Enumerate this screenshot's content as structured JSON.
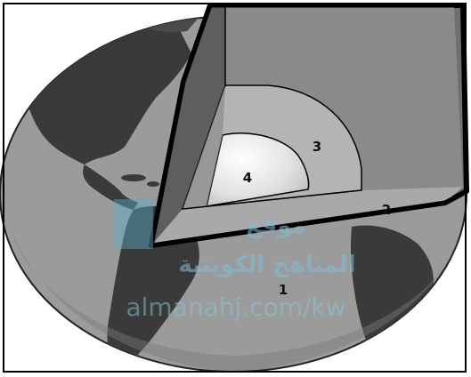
{
  "diagram": {
    "labels": {
      "layer_1": "1",
      "layer_2": "2",
      "layer_3": "3",
      "layer_4": "4"
    },
    "colors": {
      "ocean": "#9b9b9b",
      "land": "#3a3a3a",
      "crust_cut_outer": "#6f6f6f",
      "mantle": "#8a8a8a",
      "outer_core": "#b4b4b4",
      "inner_core": "#ececec",
      "outline": "#000000"
    }
  },
  "watermark": {
    "line1": "موقع",
    "line2": "المناهج الكويتية",
    "line3": "almanahj.com/kw"
  }
}
